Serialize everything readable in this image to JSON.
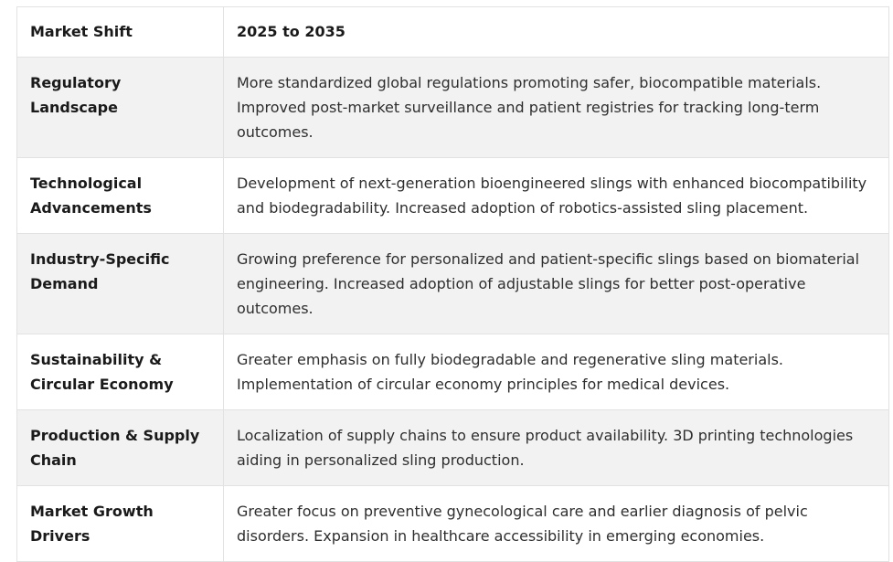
{
  "table": {
    "headers": [
      "Market Shift",
      "2025 to 2035"
    ],
    "rows": [
      {
        "shift": "Regulatory Landscape",
        "description": "More standardized global regulations promoting safer, biocompatible materials. Improved post-market surveillance and patient registries for tracking long-term outcomes."
      },
      {
        "shift": "Technological Advancements",
        "description": "Development of next-generation bioengineered slings with enhanced biocompatibility and biodegradability. Increased adoption of robotics-assisted sling placement."
      },
      {
        "shift": "Industry-Specific Demand",
        "description": "Growing preference for personalized and patient-specific slings based on biomaterial engineering. Increased adoption of adjustable slings for better post-operative outcomes."
      },
      {
        "shift": "Sustainability & Circular Economy",
        "description": "Greater emphasis on fully biodegradable and regenerative sling materials. Implementation of circular economy principles for medical devices."
      },
      {
        "shift": "Production & Supply Chain",
        "description": "Localization of supply chains to ensure product availability. 3D printing technologies aiding in personalized sling production."
      },
      {
        "shift": "Market Growth Drivers",
        "description": "Greater focus on preventive gynecological care and earlier diagnosis of pelvic disorders. Expansion in healthcare accessibility in emerging economies."
      }
    ]
  }
}
